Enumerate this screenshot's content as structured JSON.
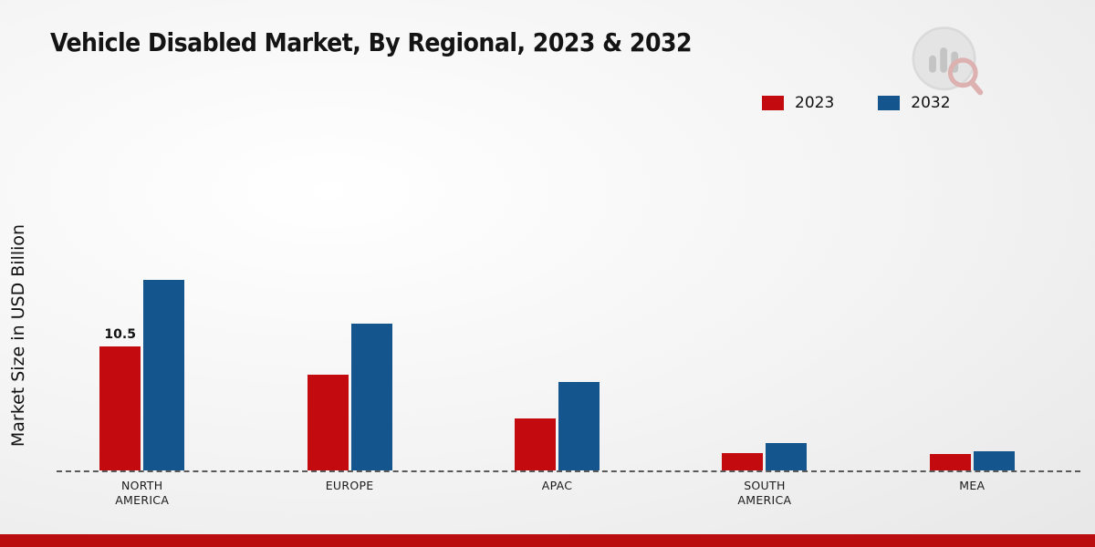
{
  "title": "Vehicle Disabled Market, By Regional, 2023 & 2032",
  "chart_data": {
    "type": "bar",
    "title": "Vehicle Disabled Market, By Regional, 2023 & 2032",
    "ylabel": "Market Size in USD Billion",
    "xlabel": "",
    "ylim": [
      0,
      17
    ],
    "grid": false,
    "legend_position": "top-right",
    "categories": [
      "NORTH AMERICA",
      "EUROPE",
      "APAC",
      "SOUTH AMERICA",
      "MEA"
    ],
    "series": [
      {
        "name": "2023",
        "color": "#c30a0e",
        "values": [
          10.5,
          8.1,
          4.4,
          1.5,
          1.4
        ]
      },
      {
        "name": "2032",
        "color": "#15558d",
        "values": [
          16.1,
          12.4,
          7.5,
          2.3,
          1.6
        ]
      }
    ],
    "data_labels": [
      {
        "category_index": 0,
        "series_index": 0,
        "text": "10.5"
      }
    ]
  },
  "colors": {
    "accent_red": "#c30a0e",
    "accent_blue": "#15558d",
    "footer": "#b90d10"
  }
}
